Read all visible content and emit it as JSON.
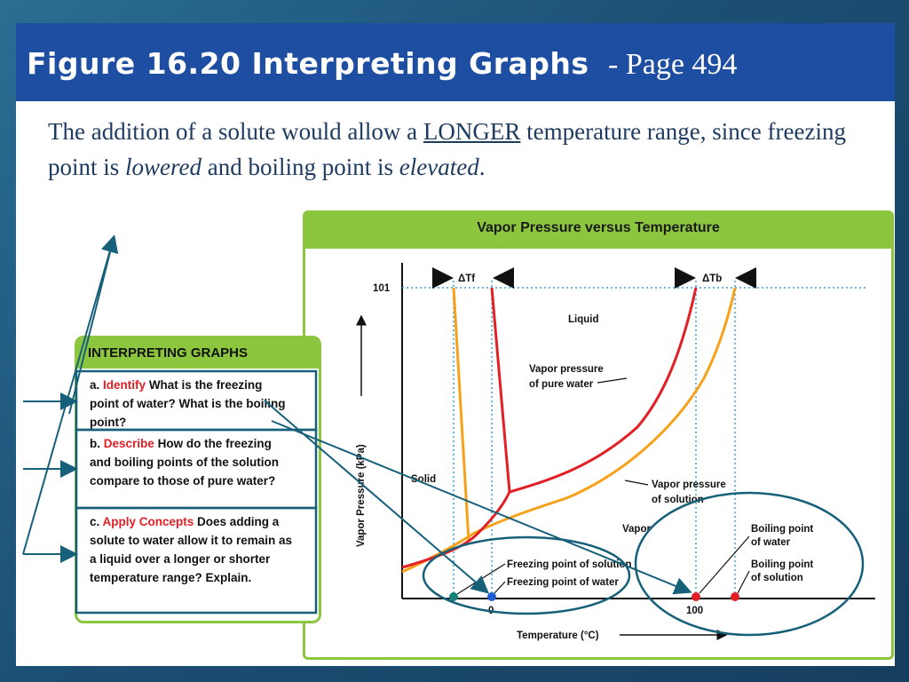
{
  "title": {
    "figure": "Figure 16.20 Interpreting Graphs",
    "page": "- Page 494"
  },
  "body": {
    "part1": "The addition of a solute would allow a ",
    "longer": "LONGER",
    "part2": " temperature range, since freezing point is ",
    "lowered": "lowered",
    "part3": " and boiling point is ",
    "elevated": "elevated",
    "part4": "."
  },
  "interpreting": {
    "title": "INTERPRETING GRAPHS",
    "q1": {
      "label": "a.",
      "tag": "Identify",
      "text": "What is the freezing point of water? What is the boiling point?"
    },
    "q2": {
      "label": "b.",
      "tag": "Describe",
      "text": "How do the freezing and boiling points of the solution compare to those of pure water?"
    },
    "q3": {
      "label": "c.",
      "tag": "Apply Concepts",
      "text": "Does adding a solute to water allow it to remain as a liquid over a longer or shorter temperature range? Explain."
    }
  },
  "graph": {
    "title": "Vapor Pressure versus Temperature",
    "ylabel": "Vapor Pressure (kPa)",
    "xlabel": "Temperature (°C)",
    "y_tick": "101",
    "x_ticks": [
      "0",
      "100"
    ],
    "delta_tf": "ΔTf",
    "delta_tb": "ΔTb",
    "regions": {
      "liquid": "Liquid",
      "solid": "Solid",
      "vapor": "Vapor"
    },
    "labels": {
      "vp_pure_1": "Vapor pressure",
      "vp_pure_2": "of pure water",
      "vp_sol_1": "Vapor pressure",
      "vp_sol_2": "of solution",
      "fp_solution": "Freezing point of solution",
      "fp_water": "Freezing point of water",
      "bp_water_1": "Boiling point",
      "bp_water_2": "of water",
      "bp_solution_1": "Boiling point",
      "bp_solution_2": "of solution"
    }
  },
  "colors": {
    "title_bar": "#1e4ea1",
    "panel_green": "#8cc63f",
    "pure_water": "#e31f26",
    "solution": "#f7a11a",
    "annotation": "#17607a",
    "guide": "#3aa0d8"
  }
}
